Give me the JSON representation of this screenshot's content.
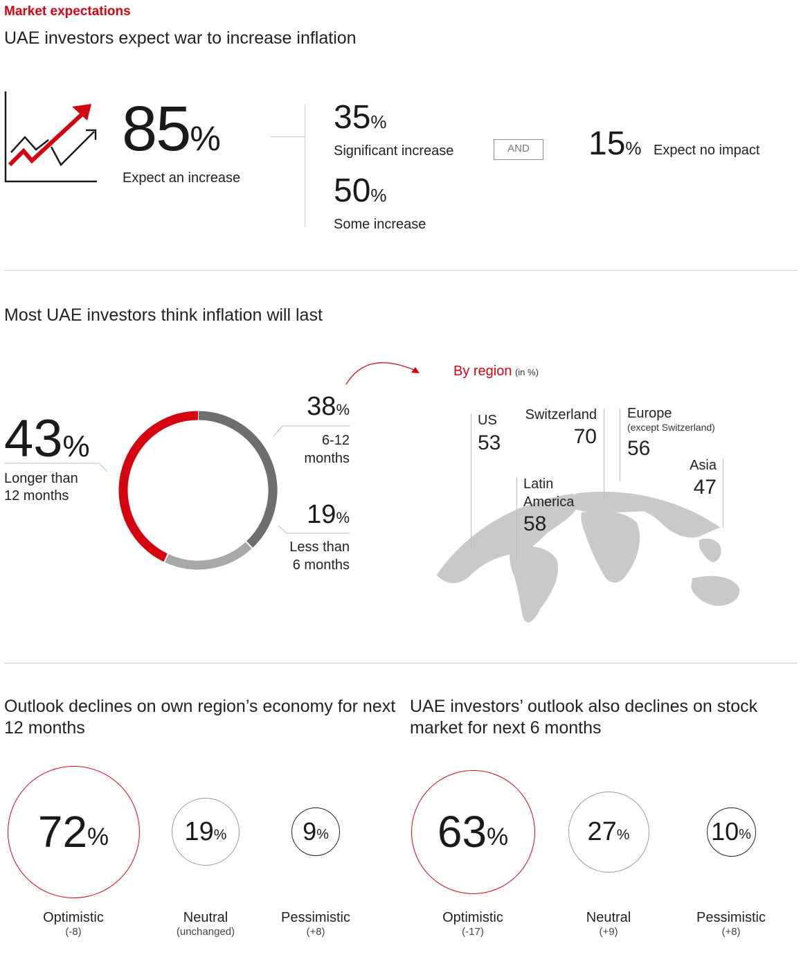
{
  "header": {
    "section_label": "Market expectations",
    "title1": "UAE investors expect war to increase inflation"
  },
  "inflation": {
    "total_value": "85",
    "total_label": "Expect an increase",
    "significant_value": "35",
    "significant_label": "Significant increase",
    "some_value": "50",
    "some_label": "Some increase",
    "and_label": "AND",
    "no_impact_value": "15",
    "no_impact_label": "Expect no impact",
    "pct": "%"
  },
  "duration": {
    "title": "Most UAE investors think inflation will last",
    "longer_value": "43",
    "longer_label_1": "Longer than",
    "longer_label_2": "12 months",
    "mid_value": "38",
    "mid_label_1": "6-12",
    "mid_label_2": "months",
    "less_value": "19",
    "less_label_1": "Less than",
    "less_label_2": "6 months",
    "pct": "%"
  },
  "region": {
    "title": "By region",
    "unit": "(in %)",
    "items": [
      {
        "name": "US",
        "value": "53"
      },
      {
        "name": "Switzerland",
        "value": "70"
      },
      {
        "name": "Europe",
        "note": "(except Switzerland)",
        "value": "56"
      },
      {
        "name": "Asia",
        "value": "47"
      },
      {
        "name": "Latin",
        "name2": "America",
        "value": "58"
      }
    ]
  },
  "economy": {
    "title_1": "Outlook declines on own region’s economy for next",
    "title_2": "12 months",
    "items": [
      {
        "value": "72",
        "label": "Optimistic",
        "change": "(-8)"
      },
      {
        "value": "19",
        "label": "Neutral",
        "change": "(unchanged)"
      },
      {
        "value": "9",
        "label": "Pessimistic",
        "change": "(+8)"
      }
    ]
  },
  "stocks": {
    "title_1": "UAE investors’ outlook also declines on stock",
    "title_2": "market for next 6 months",
    "items": [
      {
        "value": "63",
        "label": "Optimistic",
        "change": "(-17)"
      },
      {
        "value": "27",
        "label": "Neutral",
        "change": "(+9)"
      },
      {
        "value": "10",
        "label": "Pessimistic",
        "change": "(+8)"
      }
    ]
  },
  "pct": "%",
  "colors": {
    "accent": "#d40510",
    "dark_gray": "#6d6e70",
    "light_gray": "#a7a8aa",
    "map": "#c8c8c8"
  },
  "icons": [
    "trend-chart-icon",
    "curved-arrow-icon",
    "world-map-icon"
  ],
  "chart_data": [
    {
      "type": "pie",
      "categories": [
        "Longer than 12 months",
        "6-12 months",
        "Less than 6 months"
      ],
      "values": [
        43,
        38,
        19
      ],
      "title": "Most UAE investors think inflation will last"
    },
    {
      "type": "bar",
      "categories": [
        "US",
        "Switzerland",
        "Europe (except Switzerland)",
        "Asia",
        "Latin America"
      ],
      "values": [
        53,
        70,
        56,
        47,
        58
      ],
      "title": "By region",
      "ylabel": "(in %)"
    },
    {
      "type": "bar",
      "categories": [
        "Optimistic",
        "Neutral",
        "Pessimistic"
      ],
      "values": [
        72,
        19,
        9
      ],
      "title": "Outlook declines on own region’s economy for next 12 months"
    },
    {
      "type": "bar",
      "categories": [
        "Optimistic",
        "Neutral",
        "Pessimistic"
      ],
      "values": [
        63,
        27,
        10
      ],
      "title": "UAE investors’ outlook also declines on stock market for next 6 months"
    }
  ]
}
